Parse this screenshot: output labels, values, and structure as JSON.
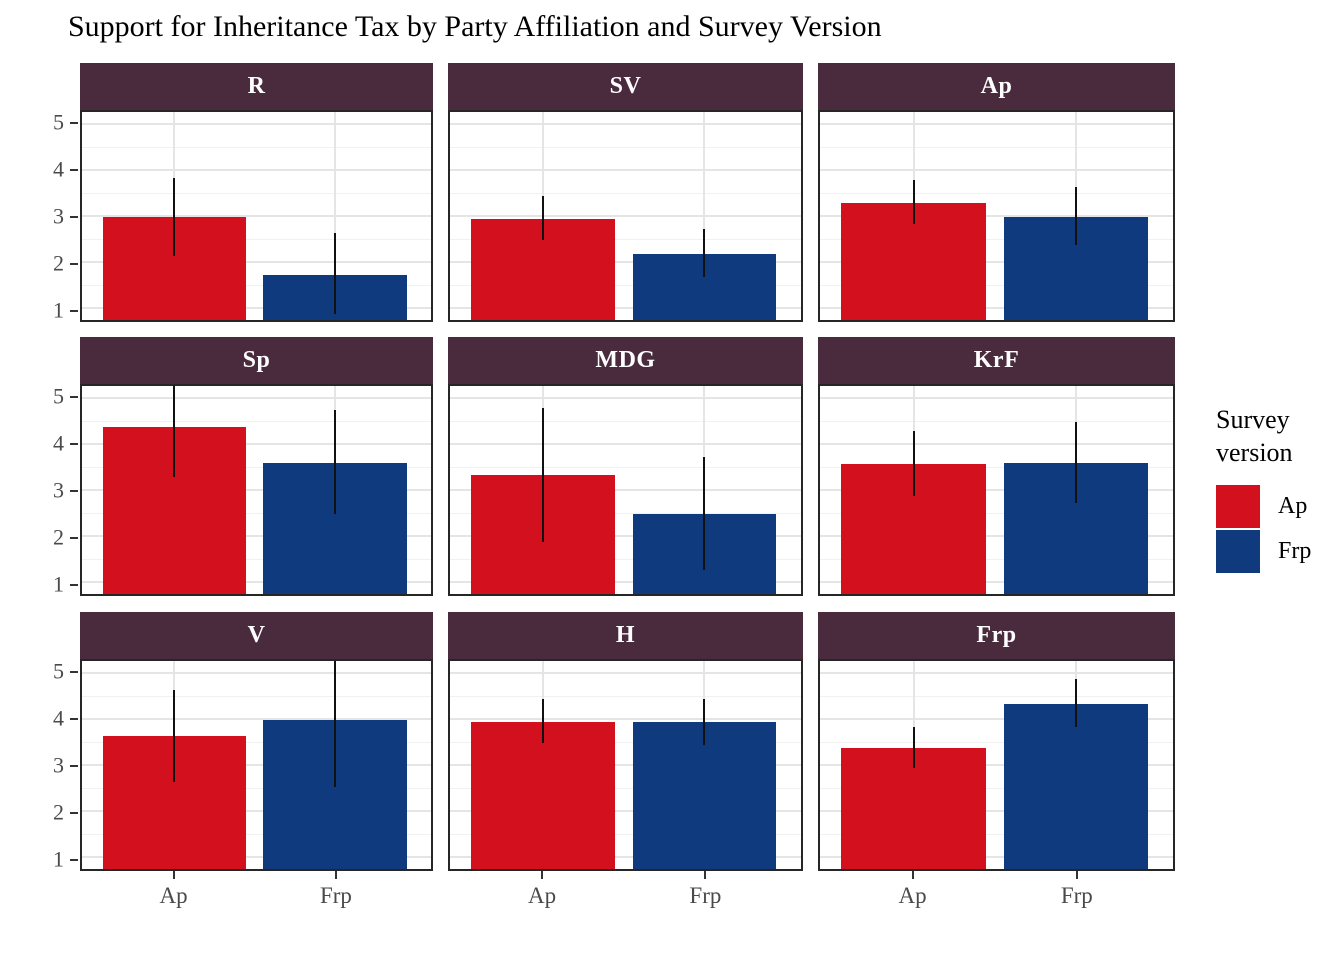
{
  "title": "Support for Inheritance Tax by Party Affiliation and Survey Version",
  "colors": {
    "bar_ap": "#d2101e",
    "bar_frp": "#0f3a7e",
    "strip_bg": "#4a2b3e",
    "strip_text": "#ffffff",
    "panel_border": "#262626",
    "grid_major": "#e5e5e5",
    "grid_minor": "#f1f1f1",
    "error_bar": "#111111",
    "tick_mark": "#333333",
    "axis_text": "#4a4a4a",
    "title_text": "#000000",
    "background": "#ffffff"
  },
  "legend": {
    "title_line1": "Survey",
    "title_line2": "version",
    "items": [
      {
        "label": "Ap",
        "color": "#d2101e"
      },
      {
        "label": "Frp",
        "color": "#0f3a7e"
      }
    ]
  },
  "axes": {
    "y_tick_labels": [
      "5",
      "4",
      "3",
      "2",
      "1"
    ],
    "x_tick_labels": [
      "Ap",
      "Frp"
    ]
  },
  "chart_data": {
    "type": "bar",
    "title": "Support for Inheritance Tax by Party Affiliation and Survey Version",
    "xlabel": "",
    "ylabel": "",
    "x_categories": [
      "Ap",
      "Frp"
    ],
    "y_ticks": [
      1,
      2,
      3,
      4,
      5
    ],
    "y_display_range": [
      0.77,
      5.28
    ],
    "grid": "on",
    "legend_position": "right",
    "legend_title": "Survey version",
    "series_names": [
      "Ap",
      "Frp"
    ],
    "error_bars": true,
    "facet_layout": {
      "rows": 3,
      "cols": 3
    },
    "facets": [
      {
        "label": "R",
        "bars": [
          {
            "survey_version": "Ap",
            "mean": 3.0,
            "ci_low": 2.15,
            "ci_high": 3.85
          },
          {
            "survey_version": "Frp",
            "mean": 1.75,
            "ci_low": 0.9,
            "ci_high": 2.65
          }
        ]
      },
      {
        "label": "SV",
        "bars": [
          {
            "survey_version": "Ap",
            "mean": 2.95,
            "ci_low": 2.5,
            "ci_high": 3.45
          },
          {
            "survey_version": "Frp",
            "mean": 2.2,
            "ci_low": 1.7,
            "ci_high": 2.75
          }
        ]
      },
      {
        "label": "Ap",
        "bars": [
          {
            "survey_version": "Ap",
            "mean": 3.3,
            "ci_low": 2.85,
            "ci_high": 3.8
          },
          {
            "survey_version": "Frp",
            "mean": 3.0,
            "ci_low": 2.4,
            "ci_high": 3.65
          }
        ]
      },
      {
        "label": "Sp",
        "bars": [
          {
            "survey_version": "Ap",
            "mean": 4.4,
            "ci_low": 3.3,
            "ci_high": 5.3
          },
          {
            "survey_version": "Frp",
            "mean": 3.6,
            "ci_low": 2.5,
            "ci_high": 4.75
          }
        ]
      },
      {
        "label": "MDG",
        "bars": [
          {
            "survey_version": "Ap",
            "mean": 3.35,
            "ci_low": 1.9,
            "ci_high": 4.8
          },
          {
            "survey_version": "Frp",
            "mean": 2.5,
            "ci_low": 1.3,
            "ci_high": 3.75
          }
        ]
      },
      {
        "label": "KrF",
        "bars": [
          {
            "survey_version": "Ap",
            "mean": 3.58,
            "ci_low": 2.9,
            "ci_high": 4.3
          },
          {
            "survey_version": "Frp",
            "mean": 3.62,
            "ci_low": 2.75,
            "ci_high": 4.5
          }
        ]
      },
      {
        "label": "V",
        "bars": [
          {
            "survey_version": "Ap",
            "mean": 3.65,
            "ci_low": 2.65,
            "ci_high": 4.65
          },
          {
            "survey_version": "Frp",
            "mean": 4.0,
            "ci_low": 2.55,
            "ci_high": 5.3
          }
        ]
      },
      {
        "label": "H",
        "bars": [
          {
            "survey_version": "Ap",
            "mean": 3.95,
            "ci_low": 3.5,
            "ci_high": 4.45
          },
          {
            "survey_version": "Frp",
            "mean": 3.95,
            "ci_low": 3.45,
            "ci_high": 4.45
          }
        ]
      },
      {
        "label": "Frp",
        "bars": [
          {
            "survey_version": "Ap",
            "mean": 3.4,
            "ci_low": 2.95,
            "ci_high": 3.85
          },
          {
            "survey_version": "Frp",
            "mean": 4.35,
            "ci_low": 3.85,
            "ci_high": 4.9
          }
        ]
      }
    ]
  }
}
